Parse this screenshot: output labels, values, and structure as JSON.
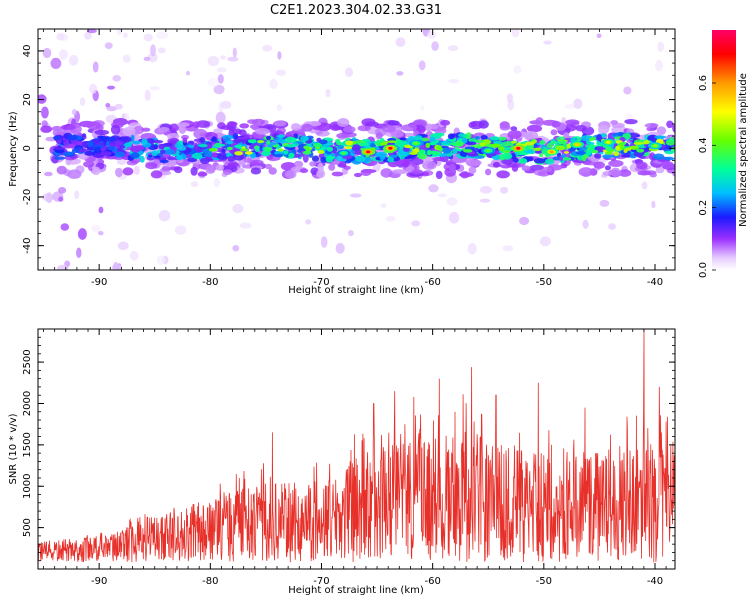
{
  "title": "C2E1.2023.304.02.33.G31",
  "colors": {
    "snr_line": "#e8302a",
    "colormap": [
      "#ffffff",
      "#d9b3ff",
      "#9b30ff",
      "#1a1aff",
      "#00bfff",
      "#00ff99",
      "#66ff00",
      "#ffff00",
      "#ff9900",
      "#ff0000",
      "#ff0066"
    ]
  },
  "chart_data": [
    {
      "type": "heatmap",
      "xlabel": "Height of straight line (km)",
      "ylabel": "Frequency (Hz)",
      "xlim": [
        -95.5,
        -38.2
      ],
      "ylim": [
        -50,
        49
      ],
      "x_ticks": [
        -90,
        -80,
        -70,
        -60,
        -50,
        -40
      ],
      "y_ticks": [
        -40,
        -20,
        0,
        20,
        40
      ],
      "colorbar": {
        "label": "Normalized spectral amplitude",
        "range": [
          0,
          0.77
        ],
        "ticks": [
          "0.0",
          "0.2",
          "0.4",
          "0.6"
        ],
        "tick_values": [
          0.0,
          0.2,
          0.4,
          0.6
        ]
      },
      "main_band_center_hz": 0,
      "main_band_halfwidth_hz": 6,
      "peaks": [
        {
          "x": -65.8,
          "y": -1.5,
          "v": 0.72
        },
        {
          "x": -63.8,
          "y": 0,
          "v": 0.7
        },
        {
          "x": -52.3,
          "y": 0,
          "v": 0.72
        },
        {
          "x": -49.3,
          "y": -1.5,
          "v": 0.6
        },
        {
          "x": -47.0,
          "y": 1.5,
          "v": 0.55
        },
        {
          "x": -44.2,
          "y": 2.5,
          "v": 0.5
        },
        {
          "x": -61.5,
          "y": 2.0,
          "v": 0.42
        },
        {
          "x": -55.0,
          "y": -1.0,
          "v": 0.4
        },
        {
          "x": -68.0,
          "y": -2.0,
          "v": 0.38
        },
        {
          "x": -40.0,
          "y": 1.0,
          "v": 0.45
        }
      ]
    },
    {
      "type": "line",
      "xlabel": "Height of straight line (km)",
      "ylabel": "SNR (10 * v/v)",
      "xlim": [
        -95.5,
        -38.2
      ],
      "ylim": [
        0,
        2900
      ],
      "x_ticks": [
        -90,
        -80,
        -70,
        -60,
        -50,
        -40
      ],
      "y_ticks": [
        500,
        1000,
        1500,
        2000,
        2500
      ],
      "series": [
        {
          "envelope": [
            {
              "x": -95.5,
              "y": 280
            },
            {
              "x": -92,
              "y": 330
            },
            {
              "x": -89,
              "y": 380
            },
            {
              "x": -87,
              "y": 600
            },
            {
              "x": -85,
              "y": 650
            },
            {
              "x": -83,
              "y": 700
            },
            {
              "x": -81,
              "y": 780
            },
            {
              "x": -79,
              "y": 900
            },
            {
              "x": -75,
              "y": 1100
            },
            {
              "x": -72,
              "y": 1050
            },
            {
              "x": -69,
              "y": 1200
            },
            {
              "x": -66,
              "y": 1500
            },
            {
              "x": -63,
              "y": 1600
            },
            {
              "x": -60,
              "y": 1700
            },
            {
              "x": -57,
              "y": 1800
            },
            {
              "x": -54,
              "y": 1600
            },
            {
              "x": -51,
              "y": 1500
            },
            {
              "x": -48,
              "y": 1400
            },
            {
              "x": -45,
              "y": 1500
            },
            {
              "x": -42,
              "y": 1600
            },
            {
              "x": -38.2,
              "y": 1700
            }
          ],
          "spikes": [
            {
              "x": -74.4,
              "y": 1650
            },
            {
              "x": -65.3,
              "y": 2000
            },
            {
              "x": -63.4,
              "y": 2150
            },
            {
              "x": -61.7,
              "y": 2080
            },
            {
              "x": -59.4,
              "y": 2300
            },
            {
              "x": -56.5,
              "y": 2440
            },
            {
              "x": -54.3,
              "y": 2100
            },
            {
              "x": -50.5,
              "y": 2250
            },
            {
              "x": -41.0,
              "y": 2900
            },
            {
              "x": -39.6,
              "y": 2200
            },
            {
              "x": -46.3,
              "y": 1950
            },
            {
              "x": -58.0,
              "y": 1900
            }
          ]
        }
      ]
    }
  ]
}
